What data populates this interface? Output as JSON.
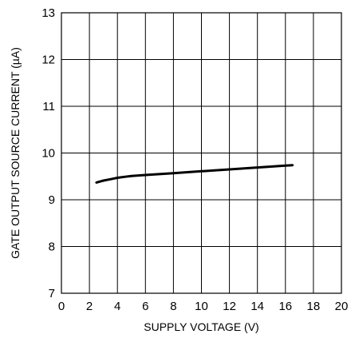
{
  "chart_data": {
    "type": "line",
    "title": "",
    "xlabel": "SUPPLY VOLTAGE (V)",
    "ylabel": "GATE OUTPUT SOURCE CURRENT (µA)",
    "xlim": [
      0,
      20
    ],
    "ylim": [
      7,
      13
    ],
    "xticks": [
      0,
      2,
      4,
      6,
      8,
      10,
      12,
      14,
      16,
      18,
      20
    ],
    "yticks": [
      7,
      8,
      9,
      10,
      11,
      12,
      13
    ],
    "grid": true,
    "series": [
      {
        "x": [
          2.5,
          3.0,
          3.5,
          4.0,
          4.5,
          5.0,
          6.0,
          8.0,
          10.0,
          12.0,
          14.0,
          16.0,
          16.5
        ],
        "y": [
          9.37,
          9.41,
          9.44,
          9.47,
          9.49,
          9.51,
          9.53,
          9.57,
          9.61,
          9.65,
          9.69,
          9.73,
          9.74
        ],
        "color": "#000000"
      }
    ]
  }
}
